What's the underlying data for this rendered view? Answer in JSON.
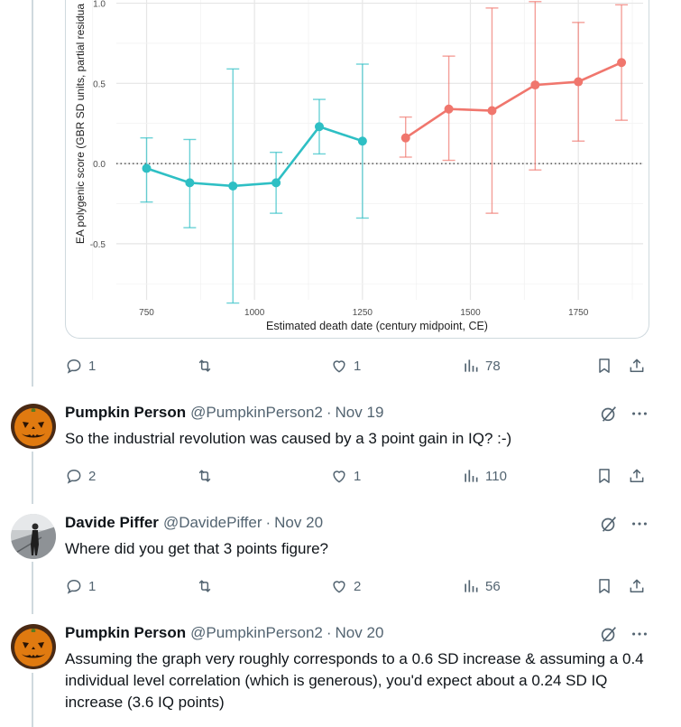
{
  "chart_data": {
    "type": "line",
    "ylabel": "EA polygenic score (GBR SD units, partial residua",
    "xlabel": "Estimated death date (century midpoint, CE)",
    "x_ticks": [
      750,
      1000,
      1250,
      1500,
      1750
    ],
    "y_ticks": [
      "1.0",
      "0.5",
      "0.0",
      "-0.5"
    ],
    "y_tick_values": [
      1.0,
      0.5,
      0.0,
      -0.5
    ],
    "xlim": [
      680,
      1900
    ],
    "ylim": [
      -0.85,
      1.02
    ],
    "reference_line": 0.0,
    "grid": true,
    "series": [
      {
        "color": "#2ebfc4",
        "points": [
          {
            "x": 750,
            "y": -0.03,
            "lo": -0.24,
            "hi": 0.16
          },
          {
            "x": 850,
            "y": -0.12,
            "lo": -0.4,
            "hi": 0.15
          },
          {
            "x": 950,
            "y": -0.14,
            "lo": -0.87,
            "hi": 0.59
          },
          {
            "x": 1050,
            "y": -0.12,
            "lo": -0.31,
            "hi": 0.07
          },
          {
            "x": 1150,
            "y": 0.23,
            "lo": 0.06,
            "hi": 0.4
          },
          {
            "x": 1250,
            "y": 0.14,
            "lo": -0.34,
            "hi": 0.62
          }
        ]
      },
      {
        "color": "#f0766d",
        "points": [
          {
            "x": 1350,
            "y": 0.16,
            "lo": 0.04,
            "hi": 0.29
          },
          {
            "x": 1450,
            "y": 0.34,
            "lo": 0.02,
            "hi": 0.67
          },
          {
            "x": 1550,
            "y": 0.33,
            "lo": -0.31,
            "hi": 0.97
          },
          {
            "x": 1650,
            "y": 0.49,
            "lo": -0.04,
            "hi": 1.01
          },
          {
            "x": 1750,
            "y": 0.51,
            "lo": 0.14,
            "hi": 0.88
          },
          {
            "x": 1850,
            "y": 0.63,
            "lo": 0.27,
            "hi": 0.99
          }
        ]
      }
    ]
  },
  "post": {
    "replies": "1",
    "retweets": "",
    "likes": "1",
    "views": "78"
  },
  "tweets": [
    {
      "name": "Pumpkin Person",
      "handle": "@PumpkinPerson2",
      "date": "Nov 19",
      "text": "So the industrial revolution was caused by a 3 point gain in IQ? :-)",
      "replies": "2",
      "retweets": "",
      "likes": "1",
      "views": "110"
    },
    {
      "name": "Davide Piffer",
      "handle": "@DavidePiffer",
      "date": "Nov 20",
      "text": "Where did you get that 3 points figure?",
      "replies": "1",
      "retweets": "",
      "likes": "2",
      "views": "56"
    },
    {
      "name": "Pumpkin Person",
      "handle": "@PumpkinPerson2",
      "date": "Nov 20",
      "text": "Assuming the graph very roughly corresponds to a 0.6 SD increase & assuming a 0.4 individual level correlation (which is generous), you'd expect about a 0.24 SD IQ increase (3.6 IQ points)"
    }
  ],
  "separator": "·",
  "icons": [
    "reply-icon",
    "retweet-icon",
    "like-icon",
    "views-icon",
    "bookmark-icon",
    "share-icon",
    "grok-icon",
    "more-icon"
  ]
}
